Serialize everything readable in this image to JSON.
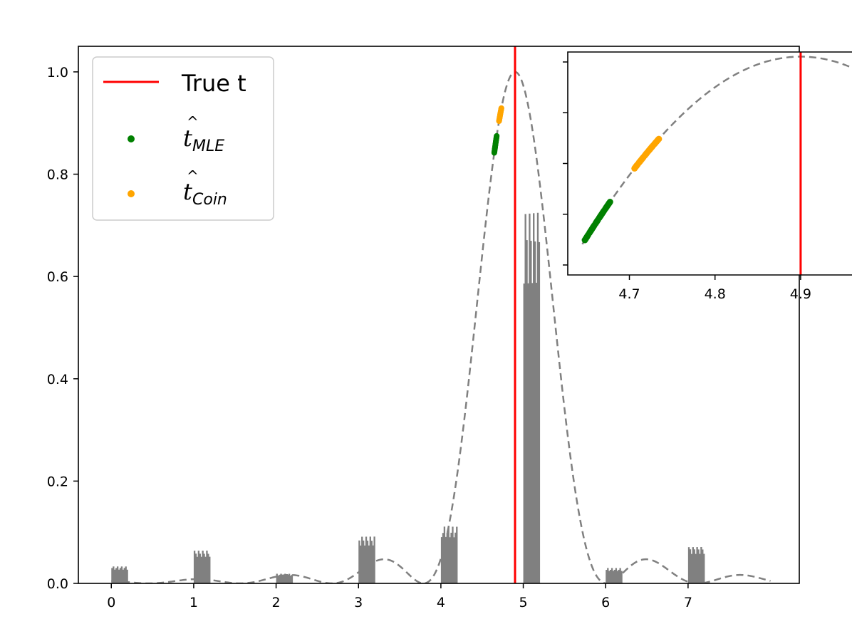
{
  "chart_data": {
    "type": "line",
    "main": {
      "xlim": [
        -0.4,
        8.35
      ],
      "ylim": [
        0.0,
        1.05
      ],
      "xticks": [
        0,
        1,
        2,
        3,
        4,
        5,
        6,
        7
      ],
      "yticks": [
        0.0,
        0.2,
        0.4,
        0.6,
        0.8,
        1.0
      ],
      "xtick_labels": [
        "0",
        "1",
        "2",
        "3",
        "4",
        "5",
        "6",
        "7"
      ],
      "ytick_labels": [
        "0.0",
        "0.2",
        "0.4",
        "0.6",
        "0.8",
        "1.0"
      ],
      "true_t": 4.9,
      "curve": {
        "style": "dashed",
        "color": "#808080",
        "peak_x": 4.9,
        "peak_y": 1.0,
        "x_range": [
          0,
          8
        ]
      },
      "histogram": {
        "color": "#808080",
        "clusters": [
          {
            "x_start": 0.0,
            "x_end": 0.2,
            "height": 0.03
          },
          {
            "x_start": 1.0,
            "x_end": 1.2,
            "height": 0.058
          },
          {
            "x_start": 2.0,
            "x_end": 2.2,
            "height": 0.017
          },
          {
            "x_start": 3.0,
            "x_end": 3.2,
            "height": 0.083
          },
          {
            "x_start": 4.0,
            "x_end": 4.2,
            "height": 0.1
          },
          {
            "x_start": 5.0,
            "x_end": 5.2,
            "height": 0.66
          },
          {
            "x_start": 6.0,
            "x_end": 6.2,
            "height": 0.027
          },
          {
            "x_start": 7.0,
            "x_end": 7.2,
            "height": 0.065
          }
        ]
      }
    },
    "inset": {
      "xlim": [
        4.628,
        4.96
      ],
      "xticks": [
        4.7,
        4.8,
        4.9
      ],
      "xtick_labels": [
        "4.7",
        "4.8",
        "4.9"
      ],
      "true_t": 4.9,
      "mle_range": [
        4.648,
        4.678
      ],
      "coin_range": [
        4.706,
        4.735
      ]
    },
    "series": [
      {
        "name": "True t",
        "color": "#ff0000",
        "kind": "vline"
      },
      {
        "name": "MLE",
        "color": "#008000",
        "kind": "scatter",
        "x_range": [
          4.648,
          4.678
        ]
      },
      {
        "name": "Coin",
        "color": "#ffa500",
        "kind": "scatter",
        "x_range": [
          4.706,
          4.735
        ]
      }
    ]
  },
  "legend": {
    "true_t_label": "True t",
    "mle_symbol": "t",
    "mle_sub": "MLE",
    "coin_symbol": "t",
    "coin_sub": "Coin",
    "hat": "^"
  }
}
